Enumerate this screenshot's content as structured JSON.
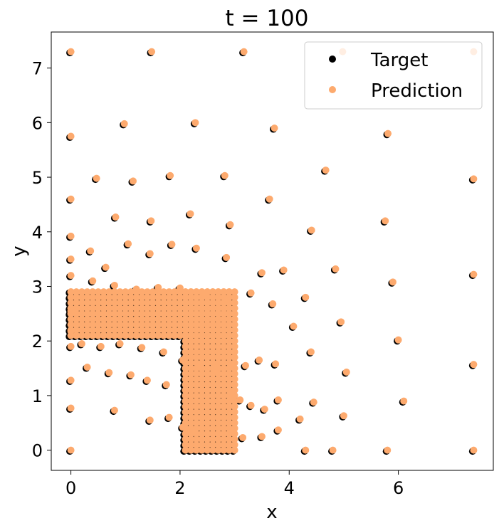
{
  "chart_data": {
    "type": "scatter",
    "title": "t = 100",
    "xlabel": "x",
    "ylabel": "y",
    "xlim": [
      -0.36,
      7.74
    ],
    "ylim": [
      -0.37,
      7.66
    ],
    "xticks": [
      0,
      2,
      4,
      6
    ],
    "xtick_labels": [
      "0",
      "2",
      "4",
      "6"
    ],
    "yticks": [
      0,
      1,
      2,
      3,
      4,
      5,
      6,
      7
    ],
    "ytick_labels": [
      "0",
      "1",
      "2",
      "3",
      "4",
      "5",
      "6",
      "7"
    ],
    "grid": false,
    "legend": {
      "placement": "top-right",
      "entries": [
        "Target",
        "Prediction"
      ]
    },
    "colors": {
      "Target": "#000000",
      "Prediction": "#fdaa6e"
    },
    "series": [
      {
        "name": "Target",
        "x": [
          0,
          1.48,
          3.17,
          0,
          0.47,
          0.98,
          1.14,
          1.82,
          2.28,
          2.82,
          3.73,
          4.67,
          5.81,
          7.38,
          0,
          0.82,
          1.47,
          2.19,
          2.92,
          3.64,
          4.41,
          5.76,
          0,
          0.36,
          0.64,
          1.05,
          1.45,
          1.85,
          2.3,
          2.85,
          3.5,
          3.9,
          4.85,
          5.9,
          7.38,
          0.4,
          0.8,
          1.2,
          1.6,
          2.0,
          2.45,
          2.85,
          3.3,
          3.7,
          4.3,
          4.95,
          6.0,
          0.2,
          0.55,
          0.9,
          1.3,
          1.7,
          2.05,
          2.35,
          2.65,
          2.95,
          3.2,
          3.45,
          3.75,
          4.08,
          4.4,
          5.05,
          6.1,
          7.38,
          0,
          0.3,
          0.7,
          1.1,
          1.4,
          1.75,
          2.1,
          2.95,
          3.1,
          3.3,
          3.55,
          3.8,
          4.2,
          4.45,
          5.0,
          0.8,
          1.45,
          1.8,
          2.05,
          2.2,
          2.95,
          3.15,
          3.5,
          3.8,
          4.3,
          4.8,
          5.8,
          7.38,
          0,
          0,
          0,
          0,
          0,
          0,
          0,
          0
        ],
        "y": [
          7.3,
          7.3,
          7.3,
          5.75,
          4.98,
          5.98,
          4.93,
          5.03,
          6.0,
          5.03,
          5.9,
          5.13,
          5.8,
          4.97,
          4.6,
          4.27,
          4.2,
          4.33,
          4.13,
          4.6,
          4.03,
          4.2,
          3.92,
          3.65,
          3.35,
          3.78,
          3.6,
          3.77,
          3.7,
          3.53,
          3.25,
          3.3,
          3.32,
          3.08,
          3.22,
          3.1,
          3.02,
          2.95,
          2.98,
          2.97,
          2.88,
          2.75,
          2.88,
          2.68,
          2.8,
          2.35,
          2.02,
          1.95,
          1.9,
          1.95,
          1.88,
          1.8,
          1.65,
          1.55,
          1.5,
          1.55,
          1.55,
          1.65,
          1.58,
          2.27,
          1.8,
          1.43,
          0.9,
          1.57,
          1.28,
          1.52,
          1.42,
          1.38,
          1.28,
          1.2,
          1.1,
          1.0,
          0.92,
          0.82,
          0.75,
          0.92,
          0.57,
          0.88,
          0.63,
          0.73,
          0.55,
          0.6,
          0.42,
          0.37,
          0.35,
          0.23,
          0.25,
          0.37,
          0,
          0,
          0,
          0,
          0.77,
          0,
          1.9,
          2.18,
          2.55,
          2.9,
          3.2,
          3.5
        ],
        "marker": "dot"
      },
      {
        "name": "Prediction",
        "x": [
          0,
          1.48,
          3.17,
          0,
          0.47,
          0.98,
          1.14,
          1.82,
          2.28,
          2.82,
          3.73,
          4.67,
          5.81,
          7.38,
          0,
          0.82,
          1.47,
          2.19,
          2.92,
          3.64,
          4.41,
          5.76,
          0,
          0.36,
          0.64,
          1.05,
          1.45,
          1.85,
          2.3,
          2.85,
          3.5,
          3.9,
          4.85,
          5.9,
          7.38,
          0.4,
          0.8,
          1.2,
          1.6,
          2.0,
          2.45,
          2.85,
          3.3,
          3.7,
          4.3,
          4.95,
          6.0,
          0.2,
          0.55,
          0.9,
          1.3,
          1.7,
          2.05,
          2.35,
          2.65,
          2.95,
          3.2,
          3.45,
          3.75,
          4.08,
          4.4,
          5.05,
          6.1,
          7.38,
          0,
          0.3,
          0.7,
          1.1,
          1.4,
          1.75,
          2.1,
          2.95,
          3.1,
          3.3,
          3.55,
          3.8,
          4.2,
          4.45,
          5.0,
          0.8,
          1.45,
          1.8,
          2.05,
          2.2,
          2.95,
          3.15,
          3.5,
          3.8,
          4.3,
          4.8,
          5.8,
          7.38,
          0,
          0,
          0,
          0,
          0,
          0,
          0,
          0,
          4.98,
          7.38
        ],
        "y": [
          7.3,
          7.3,
          7.3,
          5.75,
          4.98,
          5.98,
          4.93,
          5.03,
          6.0,
          5.03,
          5.9,
          5.13,
          5.8,
          4.97,
          4.6,
          4.27,
          4.2,
          4.33,
          4.13,
          4.6,
          4.03,
          4.2,
          3.92,
          3.65,
          3.35,
          3.78,
          3.6,
          3.77,
          3.7,
          3.53,
          3.25,
          3.3,
          3.32,
          3.08,
          3.22,
          3.1,
          3.02,
          2.95,
          2.98,
          2.97,
          2.88,
          2.75,
          2.88,
          2.68,
          2.8,
          2.35,
          2.02,
          1.95,
          1.9,
          1.95,
          1.88,
          1.8,
          1.65,
          1.55,
          1.5,
          1.55,
          1.55,
          1.65,
          1.58,
          2.27,
          1.8,
          1.43,
          0.9,
          1.57,
          1.28,
          1.52,
          1.42,
          1.38,
          1.28,
          1.2,
          1.1,
          1.0,
          0.92,
          0.82,
          0.75,
          0.92,
          0.57,
          0.88,
          0.63,
          0.73,
          0.55,
          0.6,
          0.42,
          0.37,
          0.35,
          0.23,
          0.25,
          0.37,
          0,
          0,
          0,
          0,
          0.77,
          0,
          1.9,
          2.18,
          2.55,
          2.9,
          3.2,
          3.5,
          7.3,
          7.3
        ],
        "marker": "dot"
      }
    ],
    "dense_region": {
      "description_values": "L-shaped cluster of overlapping points (in data units)",
      "horizontal_arm": {
        "x_from": 0,
        "x_to": 2.95,
        "y_from": 2.1,
        "y_to": 2.95
      },
      "vertical_arm": {
        "x_from": 2.1,
        "x_to": 3.0,
        "y_from": 0,
        "y_to": 2.95
      },
      "spacing": 0.1
    }
  }
}
